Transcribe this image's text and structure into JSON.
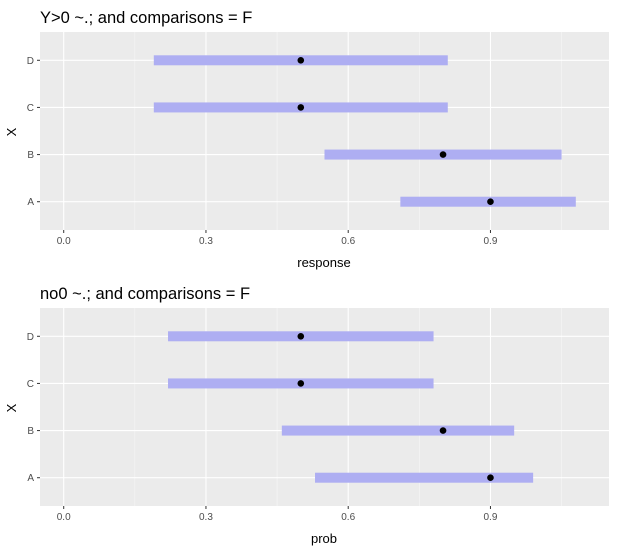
{
  "chart_data": [
    {
      "type": "interval",
      "title": "Y>0 ~.; and comparisons = F",
      "xlabel": "response",
      "ylabel": "X",
      "categories": [
        "A",
        "B",
        "C",
        "D"
      ],
      "points": [
        0.9,
        0.8,
        0.5,
        0.5
      ],
      "lower": [
        0.71,
        0.55,
        0.19,
        0.19
      ],
      "upper": [
        1.08,
        1.05,
        0.81,
        0.81
      ],
      "xlim": [
        -0.05,
        1.15
      ],
      "xticks": [
        0.0,
        0.3,
        0.6,
        0.9
      ],
      "xtick_labels": [
        "0.0",
        "0.3",
        "0.6",
        "0.9"
      ],
      "grid": true,
      "bar_color": "#aeaef2",
      "point_color": "#000000",
      "panel_color": "#ebebeb"
    },
    {
      "type": "interval",
      "title": "no0 ~.; and comparisons = F",
      "xlabel": "prob",
      "ylabel": "X",
      "categories": [
        "A",
        "B",
        "C",
        "D"
      ],
      "points": [
        0.9,
        0.8,
        0.5,
        0.5
      ],
      "lower": [
        0.53,
        0.46,
        0.22,
        0.22
      ],
      "upper": [
        0.99,
        0.95,
        0.78,
        0.78
      ],
      "xlim": [
        -0.05,
        1.15
      ],
      "xticks": [
        0.0,
        0.3,
        0.6,
        0.9
      ],
      "xtick_labels": [
        "0.0",
        "0.3",
        "0.6",
        "0.9"
      ],
      "grid": true,
      "bar_color": "#aeaef2",
      "point_color": "#000000",
      "panel_color": "#ebebeb"
    }
  ]
}
